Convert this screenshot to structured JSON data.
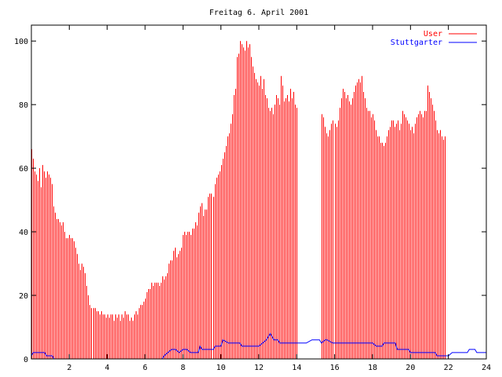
{
  "chart_data": {
    "type": "bar",
    "title": "Freitag 6. April 2001",
    "xlabel": "",
    "ylabel": "",
    "xlim": [
      0,
      24
    ],
    "ylim": [
      0,
      105
    ],
    "x_ticks": [
      "2",
      "4",
      "6",
      "8",
      "10",
      "12",
      "14",
      "16",
      "18",
      "20",
      "22",
      "24"
    ],
    "y_ticks": [
      "0",
      "20",
      "40",
      "60",
      "80",
      "100"
    ],
    "grid": false,
    "legend_position": "top-right",
    "colors": {
      "user": "#ff0000",
      "stuttgarter": "#0000ff"
    },
    "interval_hours": 0.0833,
    "series": [
      {
        "name": "User",
        "style": "impulses",
        "start_hour": 0,
        "values": [
          66,
          63,
          59,
          58,
          56,
          60,
          54,
          61,
          59,
          57,
          59,
          58,
          57,
          55,
          48,
          46,
          44,
          44,
          43,
          42,
          43,
          40,
          38,
          38,
          39,
          38,
          38,
          37,
          35,
          33,
          30,
          28,
          30,
          29,
          27,
          23,
          20,
          17,
          16,
          16,
          16,
          15,
          15,
          14,
          15,
          14,
          14,
          13,
          14,
          13,
          14,
          14,
          12,
          14,
          13,
          14,
          12,
          14,
          13,
          15,
          14,
          14,
          12,
          13,
          12,
          14,
          15,
          14,
          16,
          17,
          17,
          18,
          19,
          21,
          22,
          22,
          24,
          23,
          24,
          24,
          24,
          23,
          24,
          26,
          25,
          26,
          27,
          30,
          31,
          31,
          34,
          35,
          32,
          33,
          34,
          35,
          39,
          40,
          39,
          40,
          40,
          39,
          41,
          41,
          43,
          42,
          46,
          48,
          49,
          45,
          47,
          47,
          51,
          52,
          52,
          51,
          55,
          57,
          58,
          59,
          61,
          63,
          65,
          67,
          70,
          71,
          74,
          77,
          83,
          85,
          95,
          96,
          100,
          99,
          98,
          97,
          100,
          98,
          99,
          95,
          92,
          90,
          88,
          87,
          86,
          89,
          85,
          88,
          83,
          82,
          79,
          78,
          79,
          77,
          80,
          83,
          82,
          80,
          89,
          86,
          81,
          82,
          83,
          81,
          85,
          82,
          84,
          80,
          79,
          0,
          0,
          0,
          0,
          0,
          0,
          0,
          0,
          0,
          0,
          0,
          0,
          0,
          0,
          0,
          77,
          76,
          73,
          71,
          70,
          72,
          74,
          75,
          74,
          73,
          75,
          79,
          82,
          85,
          84,
          82,
          83,
          81,
          80,
          82,
          84,
          86,
          87,
          88,
          87,
          89,
          84,
          82,
          79,
          78,
          78,
          76,
          77,
          75,
          72,
          70,
          70,
          68,
          68,
          67,
          68,
          70,
          72,
          73,
          75,
          75,
          73,
          74,
          75,
          72,
          74,
          78,
          77,
          76,
          75,
          74,
          72,
          73,
          71,
          74,
          76,
          77,
          78,
          77,
          76,
          78,
          78,
          86,
          84,
          82,
          80,
          78,
          75,
          72,
          71,
          72,
          70,
          69,
          70
        ]
      },
      {
        "name": "Stuttgarter",
        "style": "lines",
        "points": [
          [
            0,
            1
          ],
          [
            0.1,
            2
          ],
          [
            0.3,
            2
          ],
          [
            0.5,
            2
          ],
          [
            0.7,
            2
          ],
          [
            0.8,
            1
          ],
          [
            1.1,
            1
          ],
          [
            1.2,
            0
          ],
          [
            6.9,
            0
          ],
          [
            7.0,
            1
          ],
          [
            7.2,
            2
          ],
          [
            7.4,
            3
          ],
          [
            7.6,
            3
          ],
          [
            7.8,
            2
          ],
          [
            8.0,
            3
          ],
          [
            8.2,
            3
          ],
          [
            8.4,
            2
          ],
          [
            8.8,
            2
          ],
          [
            8.9,
            4
          ],
          [
            9.0,
            3
          ],
          [
            9.6,
            3
          ],
          [
            9.7,
            4
          ],
          [
            10.0,
            4
          ],
          [
            10.1,
            6
          ],
          [
            10.4,
            5
          ],
          [
            11.0,
            5
          ],
          [
            11.1,
            4
          ],
          [
            12.0,
            4
          ],
          [
            12.2,
            5
          ],
          [
            12.4,
            6
          ],
          [
            12.6,
            8
          ],
          [
            12.8,
            6
          ],
          [
            13.0,
            6
          ],
          [
            13.1,
            5
          ],
          [
            14.5,
            5
          ],
          [
            14.8,
            6
          ],
          [
            15.2,
            6
          ],
          [
            15.3,
            5
          ],
          [
            15.5,
            6
          ],
          [
            15.6,
            6
          ],
          [
            15.9,
            5
          ],
          [
            18.0,
            5
          ],
          [
            18.2,
            4
          ],
          [
            18.5,
            4
          ],
          [
            18.6,
            5
          ],
          [
            19.2,
            5
          ],
          [
            19.3,
            3
          ],
          [
            19.9,
            3
          ],
          [
            20.0,
            2
          ],
          [
            21.3,
            2
          ],
          [
            21.4,
            1
          ],
          [
            22.0,
            1
          ],
          [
            22.2,
            2
          ],
          [
            23.0,
            2
          ],
          [
            23.1,
            3
          ],
          [
            23.4,
            3
          ],
          [
            23.5,
            2
          ],
          [
            24.0,
            2
          ]
        ]
      }
    ]
  }
}
